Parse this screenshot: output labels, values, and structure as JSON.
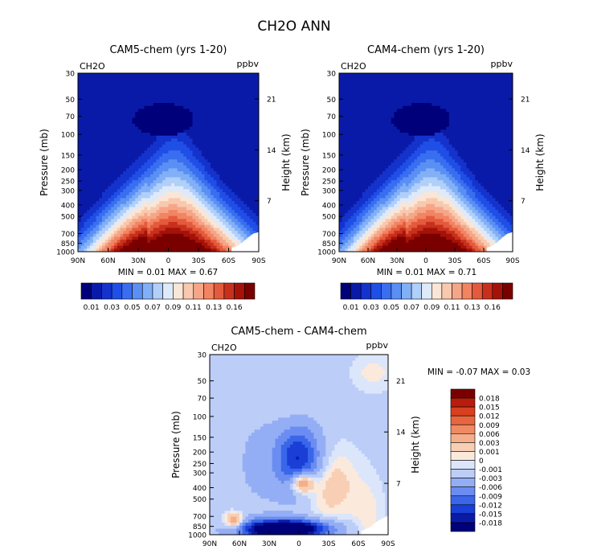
{
  "figure": {
    "title": "CH2O ANN"
  },
  "colors": {
    "abs_palette": [
      "#00007a",
      "#0a1aa8",
      "#1433cc",
      "#1f4fe6",
      "#3a6ef0",
      "#5a8ff4",
      "#82b0f7",
      "#b0cff9",
      "#deeafa",
      "#fae6d6",
      "#f8c9ae",
      "#f6a688",
      "#f28462",
      "#e45a3c",
      "#c8301e",
      "#a51208",
      "#7a0000"
    ],
    "diff_palette": [
      "#00007a",
      "#0a1aa8",
      "#1a3fd6",
      "#3a66ea",
      "#6b8df1",
      "#94aef5",
      "#bccdf8",
      "#dce6fb",
      "#fbe9dc",
      "#f8cfb4",
      "#f5ae8a",
      "#f08a62",
      "#e8653e",
      "#d8401f",
      "#b81c0c",
      "#7a0000"
    ]
  },
  "chart_data": [
    {
      "type": "heatmap",
      "title": "CAM5-chem (yrs 1-20)",
      "variable_label": "CH2O",
      "units_label": "ppbv",
      "ylabel": "Pressure (mb)",
      "y2label": "Height (km)",
      "x_ticks": [
        "90N",
        "60N",
        "30N",
        "0",
        "30S",
        "60S",
        "90S"
      ],
      "y_ticks": [
        "30",
        "50",
        "70",
        "100",
        "150",
        "200",
        "250",
        "300",
        "400",
        "500",
        "700",
        "850",
        "1000"
      ],
      "y2_ticks": [
        "21",
        "14",
        "7"
      ],
      "min_label": "MIN =",
      "min_value": "0.01",
      "max_label": "MAX =",
      "max_value": "0.67",
      "colorbar_labels": [
        "0.01",
        "0.03",
        "0.05",
        "0.07",
        "0.09",
        "0.11",
        "0.13",
        "0.16"
      ]
    },
    {
      "type": "heatmap",
      "title": "CAM4-chem (yrs 1-20)",
      "variable_label": "CH2O",
      "units_label": "ppbv",
      "ylabel": "Pressure (mb)",
      "y2label": "Height (km)",
      "x_ticks": [
        "90N",
        "60N",
        "30N",
        "0",
        "30S",
        "60S",
        "90S"
      ],
      "y_ticks": [
        "30",
        "50",
        "70",
        "100",
        "150",
        "200",
        "250",
        "300",
        "400",
        "500",
        "700",
        "850",
        "1000"
      ],
      "y2_ticks": [
        "21",
        "14",
        "7"
      ],
      "min_label": "MIN =",
      "min_value": "0.01",
      "max_label": "MAX =",
      "max_value": "0.71",
      "colorbar_labels": [
        "0.01",
        "0.03",
        "0.05",
        "0.07",
        "0.09",
        "0.11",
        "0.13",
        "0.16"
      ]
    },
    {
      "type": "heatmap",
      "title": "CAM5-chem - CAM4-chem",
      "variable_label": "CH2O",
      "units_label": "ppbv",
      "ylabel": "Pressure (mb)",
      "y2label": "Height (km)",
      "x_ticks": [
        "90N",
        "60N",
        "30N",
        "0",
        "30S",
        "60S",
        "90S"
      ],
      "y_ticks": [
        "30",
        "50",
        "70",
        "100",
        "150",
        "200",
        "250",
        "300",
        "400",
        "500",
        "700",
        "850",
        "1000"
      ],
      "y2_ticks": [
        "21",
        "14",
        "7"
      ],
      "min_label": "MIN =",
      "min_value": "-0.07",
      "max_label": "MAX =",
      "max_value": "0.03",
      "colorbar_labels": [
        "0.018",
        "0.015",
        "0.012",
        "0.009",
        "0.006",
        "0.003",
        "0.001",
        "0",
        "-0.001",
        "-0.003",
        "-0.006",
        "-0.009",
        "-0.012",
        "-0.015",
        "-0.018"
      ]
    }
  ]
}
